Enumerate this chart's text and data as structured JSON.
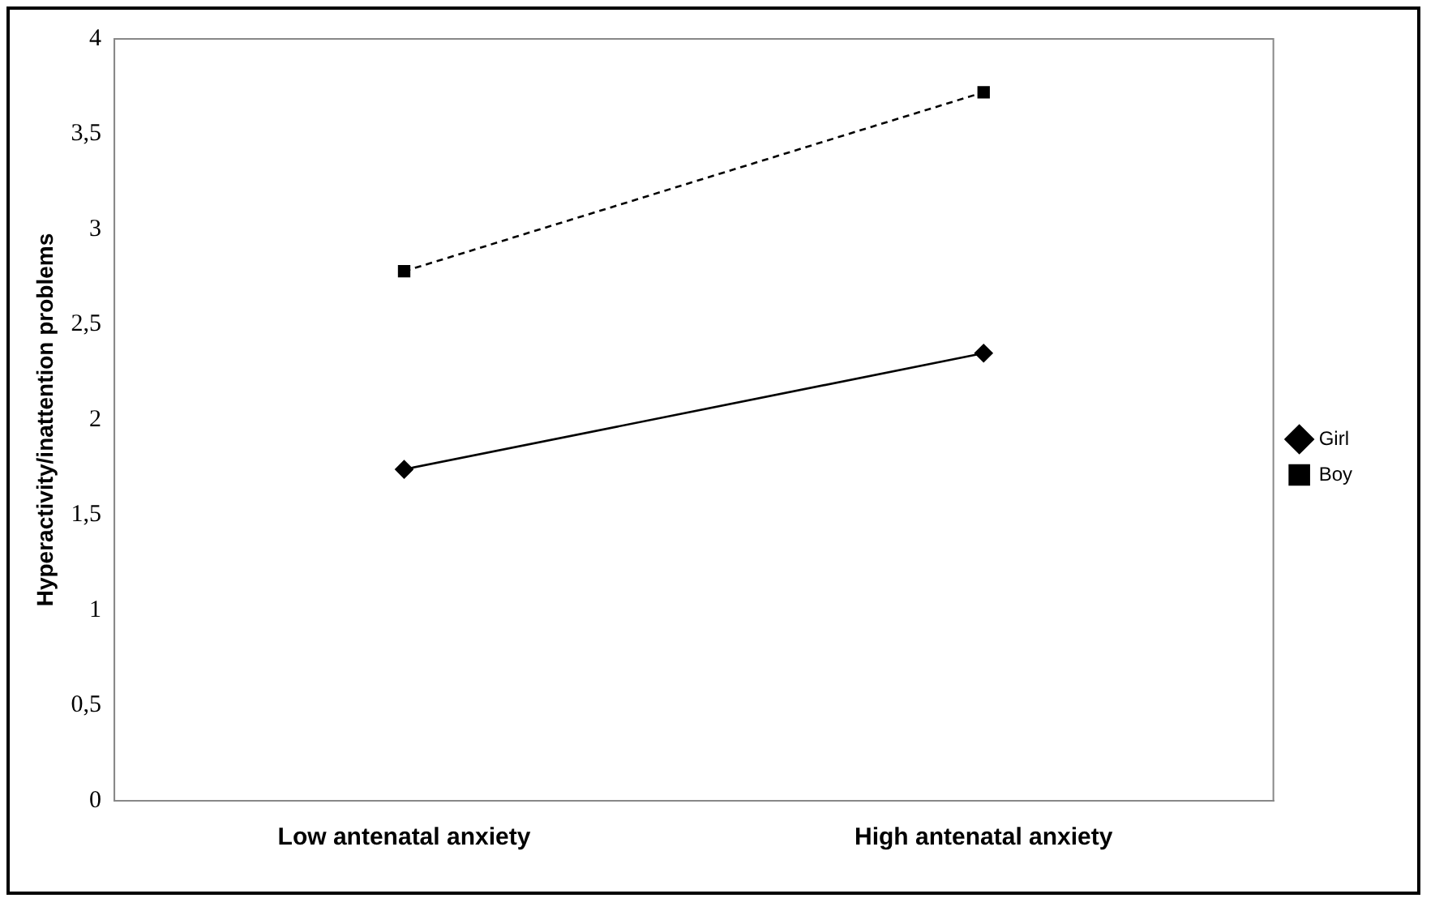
{
  "chart_data": {
    "type": "line",
    "ylabel": "Hyperactivity/inattention problems",
    "categories": [
      "Low antenatal anxiety",
      "High antenatal anxiety"
    ],
    "series": [
      {
        "name": "Girl",
        "color": "#000000",
        "values": [
          1.74,
          2.35
        ],
        "marker": "diamond",
        "line_style": "solid"
      },
      {
        "name": "Boy",
        "color": "#000000",
        "values": [
          2.78,
          3.72
        ],
        "marker": "square",
        "line_style": "dashed"
      }
    ],
    "ylim": [
      0,
      4
    ],
    "yticks": [
      0,
      {
        "value": 0.5,
        "label": "0,5"
      },
      1,
      {
        "value": 1.5,
        "label": "1,5"
      },
      2,
      {
        "value": 2.5,
        "label": "2,5"
      },
      3,
      {
        "value": 3.5,
        "label": "3,5"
      },
      4
    ],
    "grid": false,
    "legend": "right"
  }
}
